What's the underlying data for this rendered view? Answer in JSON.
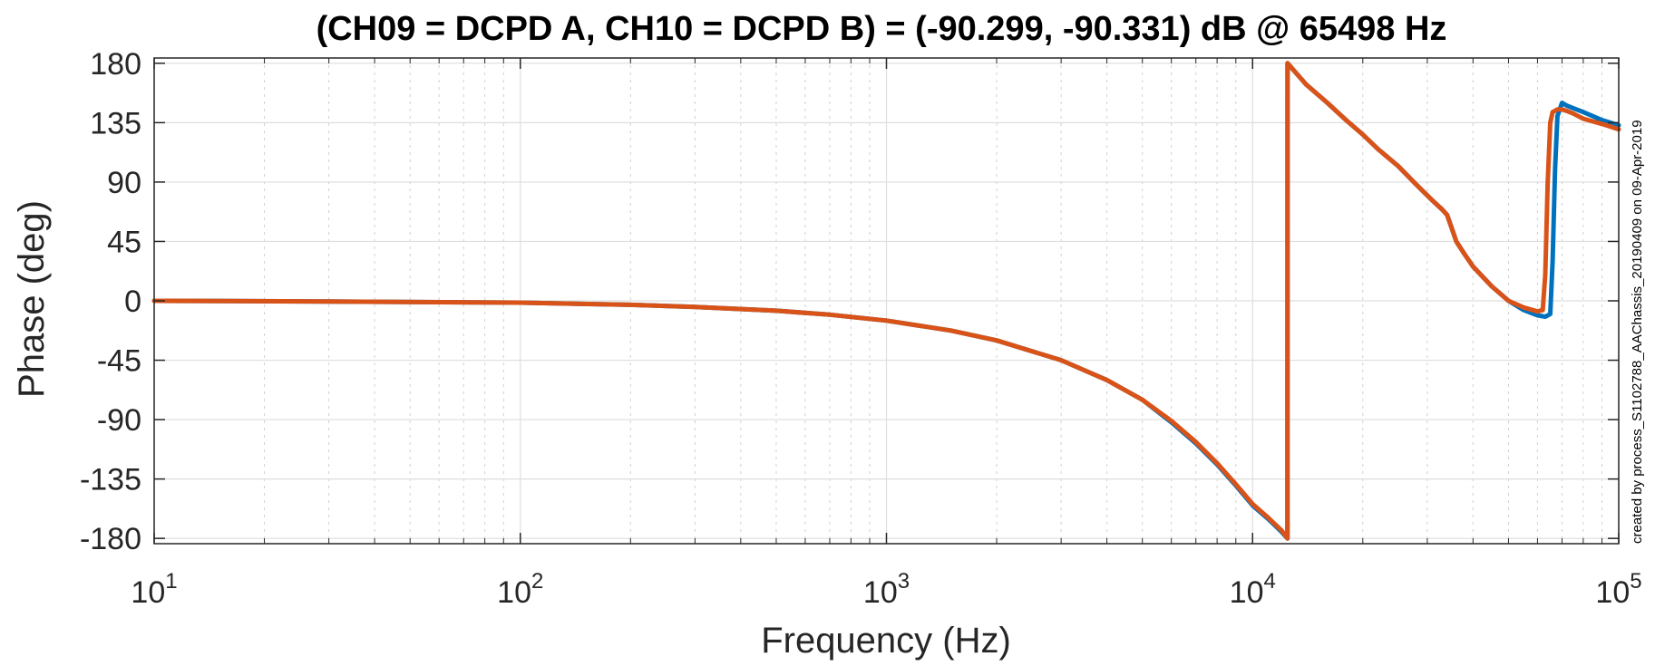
{
  "chart_data": {
    "type": "line",
    "title": "(CH09 = DCPD A, CH10 = DCPD B) = (-90.299, -90.331) dB @ 65498 Hz",
    "xlabel": "Frequency (Hz)",
    "ylabel": "Phase (deg)",
    "side_note": "created by process_S1102788_AAChassis_20190409 on 09-Apr-2019",
    "xscale": "log",
    "xlim": [
      10,
      100000
    ],
    "ylim": [
      -184,
      184
    ],
    "grid": true,
    "x_ticks": [
      {
        "base": "10",
        "exp": "1"
      },
      {
        "base": "10",
        "exp": "2"
      },
      {
        "base": "10",
        "exp": "3"
      },
      {
        "base": "10",
        "exp": "4"
      },
      {
        "base": "10",
        "exp": "5"
      }
    ],
    "y_ticks": [
      "180",
      "135",
      "90",
      "45",
      "0",
      "-45",
      "-90",
      "-135",
      "-180"
    ],
    "colors": {
      "CH09": "#0072BD",
      "CH10": "#D95319"
    },
    "series": [
      {
        "name": "CH09",
        "x": [
          10,
          30,
          100,
          200,
          300,
          500,
          700,
          1000,
          1500,
          2000,
          3000,
          4000,
          5000,
          6000,
          7000,
          8000,
          9000,
          10000,
          11000,
          12000,
          12450,
          12460,
          14000,
          16000,
          18000,
          20000,
          22000,
          25000,
          28000,
          31000,
          33000,
          34000,
          35000,
          36000,
          38000,
          40000,
          45000,
          50000,
          55000,
          60000,
          63000,
          65000,
          66000,
          67000,
          68000,
          70000,
          72000,
          75000,
          80000,
          90000,
          100000
        ],
        "y": [
          0,
          -0.5,
          -1.4,
          -3,
          -4.6,
          -7.5,
          -10.5,
          -15,
          -22.5,
          -30,
          -45,
          -60,
          -75,
          -92,
          -108,
          -124,
          -140,
          -155,
          -165,
          -175,
          -180,
          180,
          164,
          150,
          137,
          126,
          115,
          102,
          88,
          76,
          69,
          65,
          55,
          45,
          35,
          26,
          11,
          0,
          -7,
          -11,
          -12,
          -10,
          30,
          100,
          140,
          150,
          148,
          146,
          143,
          137,
          133
        ]
      },
      {
        "name": "CH10",
        "x": [
          10,
          30,
          100,
          200,
          300,
          500,
          700,
          1000,
          1500,
          2000,
          3000,
          4000,
          5000,
          6000,
          7000,
          8000,
          9000,
          10000,
          11000,
          12000,
          12450,
          12460,
          14000,
          16000,
          18000,
          20000,
          22000,
          25000,
          28000,
          31000,
          33000,
          34000,
          35000,
          36000,
          38000,
          40000,
          45000,
          50000,
          55000,
          60000,
          62000,
          63000,
          64000,
          65000,
          66000,
          68000,
          70000,
          72000,
          75000,
          80000,
          90000,
          100000
        ],
        "y": [
          0,
          -0.5,
          -1.4,
          -3,
          -4.6,
          -7.5,
          -10.5,
          -15,
          -22.5,
          -30,
          -45,
          -60,
          -75,
          -91,
          -107,
          -123,
          -139,
          -154,
          -164,
          -174,
          -180,
          180,
          164,
          150,
          137,
          126,
          115,
          102,
          88,
          76,
          69,
          65,
          55,
          45,
          35,
          26,
          11,
          0,
          -5,
          -8,
          -7,
          20,
          90,
          135,
          143,
          145,
          145,
          144,
          142,
          138,
          134,
          130
        ]
      }
    ]
  }
}
